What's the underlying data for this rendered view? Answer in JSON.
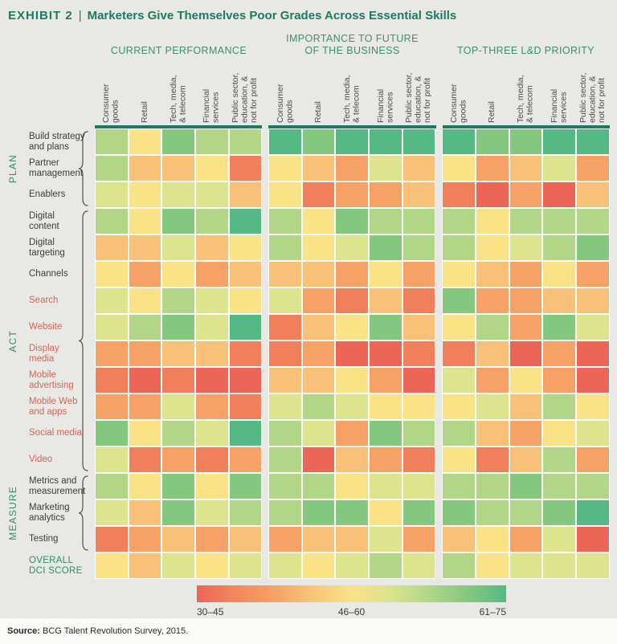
{
  "title": {
    "exhibit": "EXHIBIT 2",
    "separator": "|",
    "text": "Marketers Give Themselves Poor Grades Across Essential Skills"
  },
  "row_groups": [
    {
      "label": "PLAN",
      "first_row": 1,
      "last_row": 3
    },
    {
      "label": "ACT",
      "first_row": 4,
      "last_row": 13
    },
    {
      "label": "MEASURE",
      "first_row": 14,
      "last_row": 16
    }
  ],
  "source": {
    "label": "Source:",
    "text": " BCG Talent Revolution Survey, 2015."
  },
  "chart_data": {
    "type": "heatmap",
    "title": "Marketers Give Themselves Poor Grades Across Essential Skills",
    "column_group_labels": [
      "CURRENT PERFORMANCE",
      "IMPORTANCE TO FUTURE\nOF THE BUSINESS",
      "TOP-THREE L&D PRIORITY"
    ],
    "columns": [
      "Consumer goods",
      "Retail",
      "Tech, media, & telecom",
      "Financial services",
      "Public sector, education, & not for profit"
    ],
    "columns_display": [
      "Consumer\ngoods",
      "Retail",
      "Tech, media,\n& telecom",
      "Financial\nservices",
      "Public sector,\neducation, &\nnot for profit"
    ],
    "rows": [
      "Build strategy and plans",
      "Partner management",
      "Enablers",
      "Digital content",
      "Digital targeting",
      "Channels",
      "Search",
      "Website",
      "Display media",
      "Mobile advertising",
      "Mobile Web and apps",
      "Social media",
      "Video",
      "Metrics and measurement",
      "Marketing analytics",
      "Testing",
      "Overall DCI score"
    ],
    "rows_display": [
      "Build strategy\nand plans",
      "Partner\nmanagement",
      "Enablers",
      "Digital\ncontent",
      "Digital\ntargeting",
      "Channels",
      "Search",
      "Website",
      "Display\nmedia",
      "Mobile\nadvertising",
      "Mobile Web\nand apps",
      "Social media",
      "Video",
      "Metrics and\nmeasurement",
      "Marketing\nanalytics",
      "Testing",
      "OVERALL\nDCI SCORE"
    ],
    "row_label_colors": [
      "dark",
      "dark",
      "dark",
      "dark",
      "dark",
      "dark",
      "red",
      "red",
      "red",
      "red",
      "red",
      "red",
      "red",
      "dark",
      "dark",
      "dark",
      "green"
    ],
    "palette": {
      "R": "#ED6556",
      "RO": "#F0805C",
      "O": "#F6A165",
      "LO": "#F9C177",
      "Y": "#FAE287",
      "YG": "#DCE48D",
      "LG": "#B2D688",
      "MG": "#84C77E",
      "DG": "#55B986"
    },
    "palette_order_low_to_high": [
      "R",
      "RO",
      "O",
      "LO",
      "Y",
      "YG",
      "LG",
      "MG",
      "DG"
    ],
    "legend": {
      "bands": [
        {
          "label": "30–45",
          "color": "#ED6556"
        },
        {
          "label": "46–60",
          "color": "#FAE287"
        },
        {
          "label": "61–75",
          "color": "#55B986"
        }
      ]
    },
    "cells": [
      [
        "LG",
        "Y",
        "MG",
        "LG",
        "LG",
        "DG",
        "MG",
        "DG",
        "DG",
        "DG",
        "DG",
        "MG",
        "MG",
        "DG",
        "DG"
      ],
      [
        "LG",
        "LO",
        "LO",
        "Y",
        "RO",
        "Y",
        "LO",
        "O",
        "YG",
        "LO",
        "Y",
        "O",
        "LO",
        "YG",
        "O"
      ],
      [
        "YG",
        "Y",
        "YG",
        "YG",
        "LO",
        "Y",
        "RO",
        "O",
        "O",
        "LO",
        "RO",
        "R",
        "O",
        "R",
        "LO"
      ],
      [
        "LG",
        "Y",
        "MG",
        "LG",
        "DG",
        "LG",
        "Y",
        "MG",
        "LG",
        "LG",
        "LG",
        "Y",
        "LG",
        "LG",
        "LG"
      ],
      [
        "LO",
        "LO",
        "YG",
        "LO",
        "Y",
        "LG",
        "Y",
        "YG",
        "MG",
        "LG",
        "LG",
        "Y",
        "YG",
        "LG",
        "MG"
      ],
      [
        "Y",
        "O",
        "Y",
        "O",
        "LO",
        "LO",
        "LO",
        "O",
        "Y",
        "O",
        "Y",
        "LO",
        "O",
        "Y",
        "O"
      ],
      [
        "YG",
        "Y",
        "LG",
        "YG",
        "Y",
        "YG",
        "O",
        "RO",
        "LO",
        "RO",
        "MG",
        "O",
        "O",
        "LO",
        "LO"
      ],
      [
        "YG",
        "LG",
        "MG",
        "YG",
        "DG",
        "RO",
        "LO",
        "Y",
        "MG",
        "LO",
        "Y",
        "LG",
        "O",
        "MG",
        "YG"
      ],
      [
        "O",
        "O",
        "LO",
        "LO",
        "RO",
        "RO",
        "O",
        "R",
        "R",
        "RO",
        "RO",
        "LO",
        "R",
        "O",
        "R"
      ],
      [
        "RO",
        "R",
        "RO",
        "R",
        "R",
        "LO",
        "LO",
        "Y",
        "O",
        "R",
        "YG",
        "O",
        "Y",
        "O",
        "R"
      ],
      [
        "O",
        "O",
        "YG",
        "O",
        "RO",
        "YG",
        "LG",
        "YG",
        "Y",
        "Y",
        "Y",
        "YG",
        "LO",
        "LG",
        "Y"
      ],
      [
        "MG",
        "Y",
        "LG",
        "YG",
        "DG",
        "LG",
        "YG",
        "O",
        "MG",
        "LG",
        "LG",
        "LO",
        "O",
        "Y",
        "YG"
      ],
      [
        "YG",
        "RO",
        "O",
        "RO",
        "O",
        "LG",
        "R",
        "LO",
        "O",
        "RO",
        "Y",
        "RO",
        "LO",
        "LG",
        "O"
      ],
      [
        "LG",
        "Y",
        "MG",
        "Y",
        "MG",
        "LG",
        "LG",
        "Y",
        "YG",
        "YG",
        "LG",
        "LG",
        "MG",
        "LG",
        "LG"
      ],
      [
        "YG",
        "LO",
        "MG",
        "YG",
        "LG",
        "LG",
        "MG",
        "MG",
        "Y",
        "MG",
        "MG",
        "LG",
        "LG",
        "MG",
        "DG"
      ],
      [
        "RO",
        "O",
        "LO",
        "O",
        "LO",
        "O",
        "LO",
        "LO",
        "YG",
        "O",
        "LO",
        "Y",
        "O",
        "YG",
        "R"
      ],
      [
        "Y",
        "LO",
        "YG",
        "Y",
        "YG",
        "YG",
        "Y",
        "YG",
        "LG",
        "YG",
        "LG",
        "Y",
        "YG",
        "YG",
        "YG"
      ]
    ]
  }
}
